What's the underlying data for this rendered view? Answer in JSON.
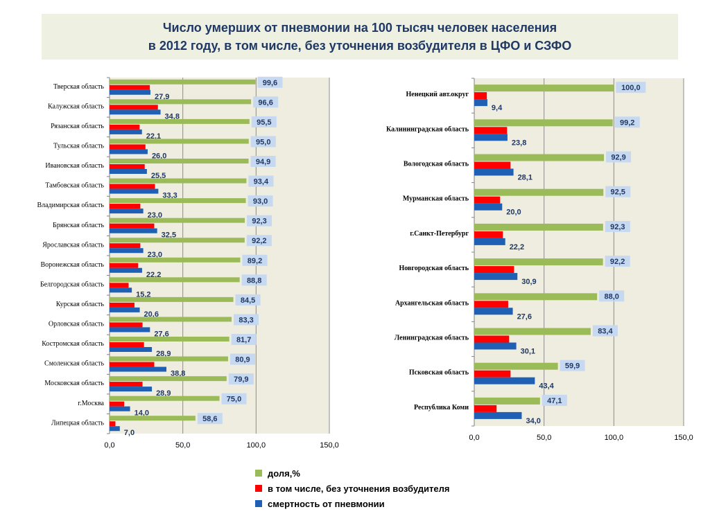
{
  "title": {
    "line1": "Число умерших от пневмонии на 100 тысяч человек населения",
    "line2": "в 2012 году, в том числе, без уточнения возбудителя в ЦФО и  СЗФО"
  },
  "colors": {
    "share": "#9bbb59",
    "unspecified": "#ff0000",
    "mortality": "#1f5fb4",
    "plot_bg": "#eeede0",
    "label_bg": "#c6d9f1"
  },
  "legend": [
    {
      "name": "доля,%",
      "color": "#9bbb59"
    },
    {
      "name": "в том числе, без уточнения возбудителя",
      "color": "#ff0000"
    },
    {
      "name": "смертность от пневмонии",
      "color": "#1f5fb4"
    }
  ],
  "chart_data": [
    {
      "type": "bar",
      "orientation": "horizontal",
      "xlim": [
        0,
        150
      ],
      "ticks": [
        "0,0",
        "50,0",
        "100,0",
        "150,0"
      ],
      "categories": [
        "Тверская область",
        "Калужская область",
        "Рязанская область",
        "Тульская область",
        "Ивановская область",
        "Тамбовская область",
        "Владимирская область",
        "Брянская область",
        "Ярославская область",
        "Воронежская область",
        "Белгородская область",
        "Курская область",
        "Орловская область",
        "Костромская область",
        "Смоленская область",
        "Московская область",
        "г.Москва",
        "Липецкая область"
      ],
      "series": [
        {
          "name": "доля,%",
          "values": [
            99.6,
            96.6,
            95.5,
            95.0,
            94.9,
            93.4,
            93.0,
            92.3,
            92.2,
            89.2,
            88.8,
            84.5,
            83.3,
            81.7,
            80.9,
            79.9,
            75.0,
            58.6
          ],
          "labels": [
            "99,6",
            "96,6",
            "95,5",
            "95,0",
            "94,9",
            "93,4",
            "93,0",
            "92,3",
            "92,2",
            "89,2",
            "88,8",
            "84,5",
            "83,3",
            "81,7",
            "80,9",
            "79,9",
            "75,0",
            "58,6"
          ]
        },
        {
          "name": "в том числе, без уточнения возбудителя",
          "values": [
            27.5,
            33,
            20.5,
            24.5,
            24,
            31,
            21,
            30.5,
            21,
            19.5,
            13,
            17,
            22.5,
            23.5,
            30.5,
            22.5,
            10,
            4
          ]
        },
        {
          "name": "смертность от пневмонии",
          "values": [
            27.9,
            34.8,
            22.1,
            26.0,
            25.5,
            33.3,
            23.0,
            32.5,
            23.0,
            22.2,
            15.2,
            20.6,
            27.6,
            28.9,
            38.8,
            28.9,
            14.0,
            7.0
          ],
          "labels": [
            "27,9",
            "34,8",
            "22,1",
            "26,0",
            "25,5",
            "33,3",
            "23,0",
            "32,5",
            "23,0",
            "22,2",
            "15,2",
            "20,6",
            "27,6",
            "28,9",
            "38,8",
            "28,9",
            "14,0",
            "7,0"
          ]
        }
      ]
    },
    {
      "type": "bar",
      "orientation": "horizontal",
      "xlim": [
        0,
        150
      ],
      "ticks": [
        "0,0",
        "50,0",
        "100,0",
        "150,0"
      ],
      "categories": [
        "Ненецкий авт.округ",
        "Калининградская область",
        "Вологодская область",
        "Мурманская область",
        "г.Санкт-Петербург",
        "Новгородская область",
        "Архангельская область",
        "Ленинградская область",
        "Псковская область",
        "Республика Коми"
      ],
      "series": [
        {
          "name": "доля,%",
          "values": [
            100.0,
            99.2,
            92.9,
            92.5,
            92.3,
            92.2,
            88.0,
            83.4,
            59.9,
            47.1
          ],
          "labels": [
            "100,0",
            "99,2",
            "92,9",
            "92,5",
            "92,3",
            "92,2",
            "88,0",
            "83,4",
            "59,9",
            "47,1"
          ]
        },
        {
          "name": "в том числе, без уточнения возбудителя",
          "values": [
            9,
            23.5,
            26,
            18.5,
            20.5,
            28.5,
            24.3,
            25,
            26,
            16
          ]
        },
        {
          "name": "смертность от пневмонии",
          "values": [
            9.4,
            23.8,
            28.1,
            20.0,
            22.2,
            30.9,
            27.6,
            30.1,
            43.4,
            34.0
          ],
          "labels": [
            "9,4",
            "23,8",
            "28,1",
            "20,0",
            "22,2",
            "30,9",
            "27,6",
            "30,1",
            "43,4",
            "34,0"
          ]
        }
      ]
    }
  ]
}
